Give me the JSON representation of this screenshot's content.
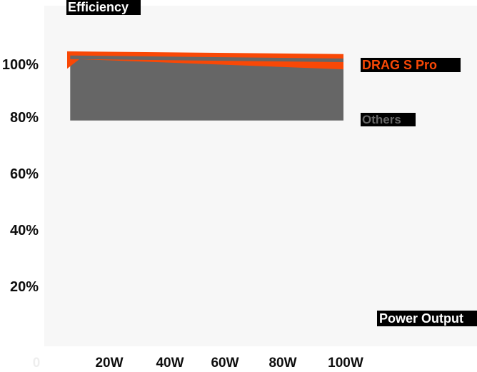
{
  "chart_data": {
    "type": "area",
    "title": "Efficiency",
    "xlabel": "Power Output",
    "ylabel": "Efficiency",
    "x_tick_labels": [
      "0",
      "20W",
      "40W",
      "60W",
      "80W",
      "100W"
    ],
    "x_tick_values": [
      0,
      20,
      40,
      60,
      80,
      100
    ],
    "x_tick_muted": "0",
    "y_tick_labels": [
      "100%",
      "80%",
      "60%",
      "40%",
      "20%"
    ],
    "y_tick_values": [
      100,
      80,
      60,
      40,
      20
    ],
    "xlim": [
      0,
      115
    ],
    "ylim": [
      0,
      110
    ],
    "grid": false,
    "legend_position": "right-of-plot",
    "series": [
      {
        "name": "DRAG S Pro",
        "color": "#f94806",
        "shape": "band",
        "band_top": {
          "x": [
            10,
            100
          ],
          "efficiency": [
            104.6,
            103.6
          ]
        },
        "band_bottom": {
          "x": [
            10,
            14,
            100
          ],
          "efficiency": [
            98.4,
            101.8,
            98.2
          ]
        }
      },
      {
        "name": "Others",
        "color": "#666666",
        "shape": "line-with-area",
        "area_baseline": 80,
        "x": [
          11,
          100
        ],
        "efficiency": [
          102.5,
          101.4
        ]
      }
    ]
  },
  "colors": {
    "accent_orange": "#f94806",
    "series_gray": "#666666",
    "plot_background": "#f7f7f7",
    "page_background": "#ffffff",
    "label_box_background": "#000000",
    "axis_text": "#0e0e0e"
  }
}
